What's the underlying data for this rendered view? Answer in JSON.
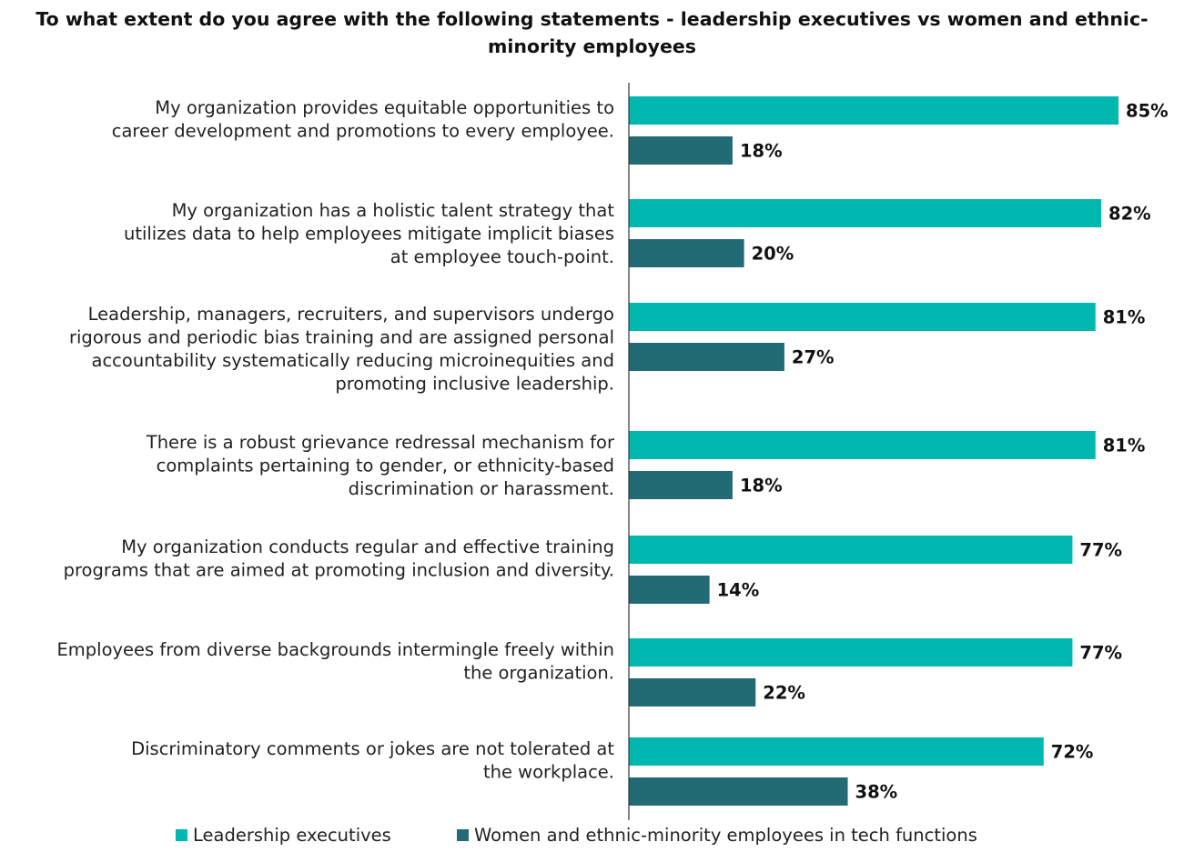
{
  "title": "To what extent do you agree with the following statements - leadership executives vs women and ethnic-minority employees",
  "chart_data": {
    "type": "bar",
    "orientation": "horizontal",
    "categories": [
      [
        "My organization provides equitable opportunities to",
        "career development and promotions to every employee."
      ],
      [
        "My organization has a holistic talent strategy that",
        "utilizes data to help employees mitigate implicit biases",
        "at employee touch-point."
      ],
      [
        "Leadership, managers, recruiters, and supervisors undergo",
        "rigorous and periodic bias training and are assigned personal",
        "accountability systematically reducing microinequities and",
        "promoting inclusive leadership."
      ],
      [
        "There is a robust grievance redressal mechanism for",
        "complaints pertaining to gender, or ethnicity-based",
        "discrimination or harassment."
      ],
      [
        "My organization conducts regular and effective training",
        "programs that are aimed at promoting inclusion and diversity."
      ],
      [
        "Employees from diverse backgrounds intermingle freely within",
        "the organization."
      ],
      [
        "Discriminatory comments or jokes are not tolerated at",
        "the workplace."
      ]
    ],
    "series": [
      {
        "name": "Leadership executives",
        "color": "#00B8B0",
        "values": [
          85,
          82,
          81,
          81,
          77,
          77,
          72
        ],
        "value_labels": [
          "85%",
          "82%",
          "81%",
          "81%",
          "77%",
          "77%",
          "72%"
        ]
      },
      {
        "name": "Women and ethnic-minority employees in tech functions",
        "color": "#236B74",
        "values": [
          18,
          20,
          27,
          18,
          14,
          22,
          38
        ],
        "value_labels": [
          "18%",
          "20%",
          "27%",
          "18%",
          "14%",
          "22%",
          "38%"
        ]
      }
    ],
    "xlim": [
      0,
      100
    ],
    "unit": "%",
    "grid": false,
    "legend_position": "bottom"
  }
}
